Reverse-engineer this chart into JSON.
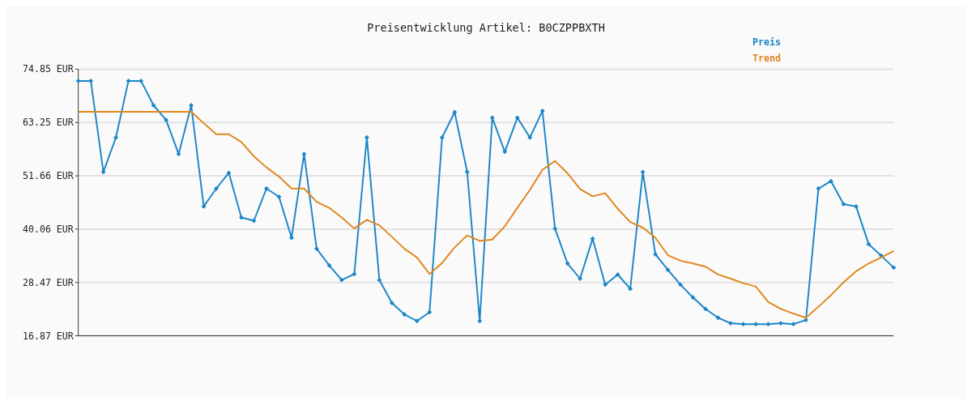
{
  "chart_data": {
    "type": "line",
    "title": "Preisentwicklung Artikel: B0CZPPBXTH",
    "categories": [
      null,
      null,
      null,
      null,
      null,
      null,
      null,
      null,
      null,
      null,
      null,
      null,
      null,
      null,
      null,
      null,
      null,
      null,
      null,
      null,
      null,
      null,
      null,
      null,
      null,
      null,
      null,
      null,
      null,
      null,
      null,
      null,
      null,
      null,
      null,
      null,
      null,
      null,
      null,
      null,
      null,
      null,
      null,
      null,
      null,
      null,
      null,
      null,
      null,
      null,
      null,
      null,
      null,
      null,
      null,
      null,
      null,
      null,
      null,
      null,
      null,
      null,
      null,
      null,
      null,
      null
    ],
    "series": [
      {
        "name": "Preis",
        "color": "#1b85c8",
        "marker": "diamond",
        "values": [
          72.3,
          72.3,
          52.5,
          60.0,
          72.3,
          72.3,
          67.0,
          63.8,
          56.4,
          67.0,
          45.0,
          48.9,
          52.3,
          42.6,
          41.9,
          48.9,
          47.1,
          38.2,
          56.4,
          35.8,
          32.2,
          29.0,
          30.3,
          60.0,
          29.0,
          24.0,
          21.5,
          20.1,
          22.0,
          60.0,
          65.5,
          52.5,
          20.1,
          64.3,
          56.9,
          64.3,
          60.0,
          65.8,
          40.2,
          32.6,
          29.3,
          38.0,
          28.0,
          30.2,
          27.1,
          52.5,
          34.6,
          31.2,
          28.0,
          25.2,
          22.7,
          20.8,
          19.6,
          19.4,
          19.4,
          19.4,
          19.6,
          19.4,
          20.3,
          48.9,
          50.5,
          45.5,
          45.0,
          36.8,
          34.3,
          31.7
        ]
      },
      {
        "name": "Trend",
        "color": "#e0861c",
        "marker": "none",
        "values": [
          65.6,
          65.6,
          65.6,
          65.6,
          65.6,
          65.6,
          65.6,
          65.6,
          65.6,
          65.6,
          63.1,
          60.7,
          60.7,
          59.0,
          55.9,
          53.5,
          51.5,
          48.9,
          48.9,
          46.0,
          44.7,
          42.6,
          40.2,
          42.1,
          40.9,
          38.4,
          35.8,
          33.9,
          30.3,
          32.7,
          36.1,
          38.7,
          37.5,
          37.8,
          40.7,
          44.7,
          48.6,
          53.0,
          54.9,
          52.2,
          48.8,
          47.2,
          47.9,
          44.5,
          41.6,
          40.4,
          38.2,
          34.4,
          33.2,
          32.6,
          31.9,
          30.2,
          29.3,
          28.3,
          27.6,
          24.2,
          22.7,
          21.7,
          20.8,
          23.2,
          25.7,
          28.5,
          30.9,
          32.6,
          33.9,
          35.3
        ]
      }
    ],
    "ylim": [
      16.87,
      74.85
    ],
    "yticks": [
      {
        "value": 16.87,
        "label": "16.87 EUR"
      },
      {
        "value": 28.47,
        "label": "28.47 EUR"
      },
      {
        "value": 40.06,
        "label": "40.06 EUR"
      },
      {
        "value": 51.66,
        "label": "51.66 EUR"
      },
      {
        "value": 63.25,
        "label": "63.25 EUR"
      },
      {
        "value": 74.85,
        "label": "74.85 EUR"
      }
    ],
    "grid": "y",
    "legend": "top right",
    "line_style": "solid"
  }
}
